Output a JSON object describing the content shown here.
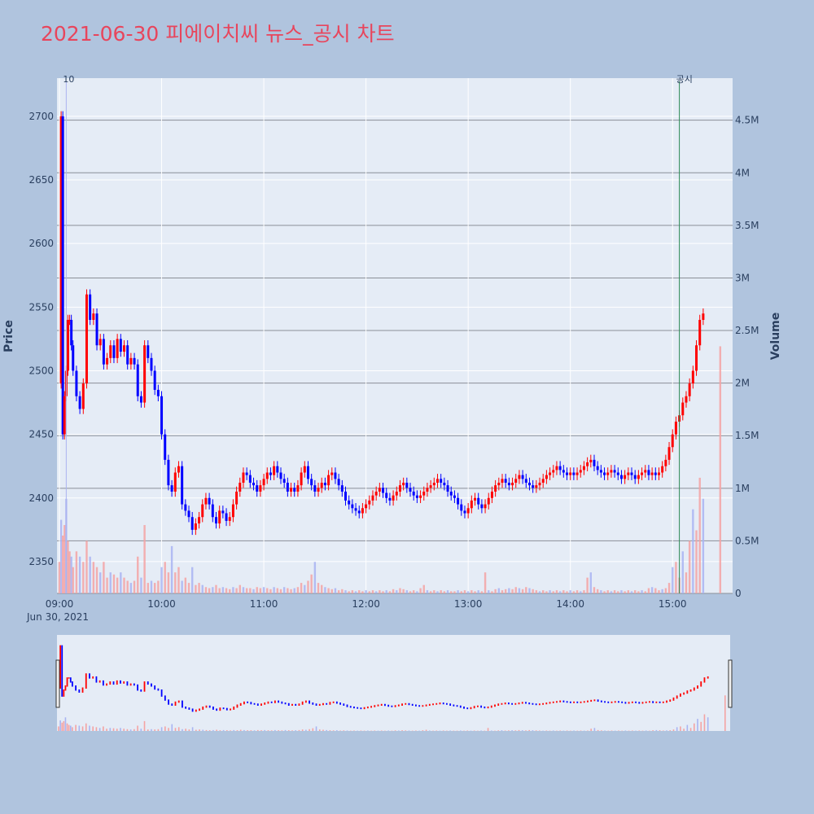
{
  "chart_data": {
    "type": "candlestick",
    "title": "2021-06-30 피에이치씨 뉴스_공시 차트",
    "ylabel_left": "Price",
    "ylabel_right": "Volume",
    "date_label": "Jun 30, 2021",
    "price_ylim": [
      2325,
      2730
    ],
    "price_ticks": [
      2350,
      2400,
      2450,
      2500,
      2550,
      2600,
      2650,
      2700
    ],
    "volume_ylim": [
      0,
      4.9
    ],
    "volume_unit": "M",
    "volume_ticks": [
      {
        "value": 0,
        "label": "0"
      },
      {
        "value": 0.5,
        "label": "0.5M"
      },
      {
        "value": 1,
        "label": "1M"
      },
      {
        "value": 1.5,
        "label": "1.5M"
      },
      {
        "value": 2,
        "label": "2M"
      },
      {
        "value": 2.5,
        "label": "2.5M"
      },
      {
        "value": 3,
        "label": "3M"
      },
      {
        "value": 3.5,
        "label": "3.5M"
      },
      {
        "value": 4,
        "label": "4M"
      },
      {
        "value": 4.5,
        "label": "4.5M"
      }
    ],
    "x_range": [
      "09:00",
      "15:30"
    ],
    "x_ticks": [
      "09:00",
      "10:00",
      "11:00",
      "12:00",
      "13:00",
      "14:00",
      "15:00"
    ],
    "annotations": [
      {
        "time": "09:04",
        "label": "10",
        "color": "#aab4f0"
      },
      {
        "time": "15:04",
        "label": "공시",
        "color": "#2e8b57"
      }
    ],
    "up_color": "#ff0000",
    "down_color": "#0000ff",
    "price_path": [
      [
        "09:00",
        2490
      ],
      [
        "09:01",
        2700
      ],
      [
        "09:02",
        2450
      ],
      [
        "09:03",
        2480
      ],
      [
        "09:04",
        2500
      ],
      [
        "09:05",
        2540
      ],
      [
        "09:06",
        2540
      ],
      [
        "09:07",
        2520
      ],
      [
        "09:08",
        2500
      ],
      [
        "09:10",
        2480
      ],
      [
        "09:12",
        2470
      ],
      [
        "09:14",
        2490
      ],
      [
        "09:16",
        2560
      ],
      [
        "09:18",
        2540
      ],
      [
        "09:20",
        2545
      ],
      [
        "09:22",
        2520
      ],
      [
        "09:24",
        2525
      ],
      [
        "09:26",
        2505
      ],
      [
        "09:28",
        2510
      ],
      [
        "09:30",
        2520
      ],
      [
        "09:32",
        2510
      ],
      [
        "09:34",
        2525
      ],
      [
        "09:36",
        2515
      ],
      [
        "09:38",
        2520
      ],
      [
        "09:40",
        2505
      ],
      [
        "09:42",
        2510
      ],
      [
        "09:44",
        2505
      ],
      [
        "09:46",
        2480
      ],
      [
        "09:48",
        2475
      ],
      [
        "09:50",
        2520
      ],
      [
        "09:52",
        2510
      ],
      [
        "09:54",
        2500
      ],
      [
        "09:56",
        2485
      ],
      [
        "09:58",
        2480
      ],
      [
        "10:00",
        2450
      ],
      [
        "10:02",
        2430
      ],
      [
        "10:04",
        2410
      ],
      [
        "10:06",
        2405
      ],
      [
        "10:08",
        2420
      ],
      [
        "10:10",
        2425
      ],
      [
        "10:12",
        2395
      ],
      [
        "10:14",
        2390
      ],
      [
        "10:16",
        2385
      ],
      [
        "10:18",
        2375
      ],
      [
        "10:20",
        2380
      ],
      [
        "10:22",
        2385
      ],
      [
        "10:24",
        2395
      ],
      [
        "10:26",
        2400
      ],
      [
        "10:28",
        2395
      ],
      [
        "10:30",
        2385
      ],
      [
        "10:32",
        2380
      ],
      [
        "10:34",
        2390
      ],
      [
        "10:36",
        2388
      ],
      [
        "10:38",
        2382
      ],
      [
        "10:40",
        2385
      ],
      [
        "10:42",
        2395
      ],
      [
        "10:44",
        2405
      ],
      [
        "10:46",
        2412
      ],
      [
        "10:48",
        2420
      ],
      [
        "10:50",
        2418
      ],
      [
        "10:52",
        2412
      ],
      [
        "10:54",
        2410
      ],
      [
        "10:56",
        2405
      ],
      [
        "10:58",
        2410
      ],
      [
        "11:00",
        2415
      ],
      [
        "11:02",
        2420
      ],
      [
        "11:04",
        2418
      ],
      [
        "11:06",
        2425
      ],
      [
        "11:08",
        2420
      ],
      [
        "11:10",
        2415
      ],
      [
        "11:12",
        2412
      ],
      [
        "11:14",
        2405
      ],
      [
        "11:16",
        2408
      ],
      [
        "11:18",
        2405
      ],
      [
        "11:20",
        2410
      ],
      [
        "11:22",
        2420
      ],
      [
        "11:24",
        2425
      ],
      [
        "11:26",
        2415
      ],
      [
        "11:28",
        2410
      ],
      [
        "11:30",
        2405
      ],
      [
        "11:32",
        2408
      ],
      [
        "11:34",
        2412
      ],
      [
        "11:36",
        2410
      ],
      [
        "11:38",
        2418
      ],
      [
        "11:40",
        2420
      ],
      [
        "11:42",
        2415
      ],
      [
        "11:44",
        2410
      ],
      [
        "11:46",
        2405
      ],
      [
        "11:48",
        2398
      ],
      [
        "11:50",
        2395
      ],
      [
        "11:52",
        2392
      ],
      [
        "11:54",
        2390
      ],
      [
        "11:56",
        2388
      ],
      [
        "11:58",
        2392
      ],
      [
        "12:00",
        2395
      ],
      [
        "12:02",
        2398
      ],
      [
        "12:04",
        2402
      ],
      [
        "12:06",
        2405
      ],
      [
        "12:08",
        2408
      ],
      [
        "12:10",
        2404
      ],
      [
        "12:12",
        2400
      ],
      [
        "12:14",
        2398
      ],
      [
        "12:16",
        2402
      ],
      [
        "12:18",
        2405
      ],
      [
        "12:20",
        2410
      ],
      [
        "12:22",
        2412
      ],
      [
        "12:24",
        2408
      ],
      [
        "12:26",
        2405
      ],
      [
        "12:28",
        2402
      ],
      [
        "12:30",
        2400
      ],
      [
        "12:32",
        2402
      ],
      [
        "12:34",
        2405
      ],
      [
        "12:36",
        2408
      ],
      [
        "12:38",
        2410
      ],
      [
        "12:40",
        2412
      ],
      [
        "12:42",
        2415
      ],
      [
        "12:44",
        2412
      ],
      [
        "12:46",
        2410
      ],
      [
        "12:48",
        2405
      ],
      [
        "12:50",
        2402
      ],
      [
        "12:52",
        2400
      ],
      [
        "12:54",
        2395
      ],
      [
        "12:56",
        2390
      ],
      [
        "12:58",
        2388
      ],
      [
        "13:00",
        2392
      ],
      [
        "13:02",
        2398
      ],
      [
        "13:04",
        2400
      ],
      [
        "13:06",
        2395
      ],
      [
        "13:08",
        2392
      ],
      [
        "13:10",
        2395
      ],
      [
        "13:12",
        2400
      ],
      [
        "13:14",
        2405
      ],
      [
        "13:16",
        2410
      ],
      [
        "13:18",
        2412
      ],
      [
        "13:20",
        2415
      ],
      [
        "13:22",
        2412
      ],
      [
        "13:24",
        2410
      ],
      [
        "13:26",
        2412
      ],
      [
        "13:28",
        2415
      ],
      [
        "13:30",
        2418
      ],
      [
        "13:32",
        2415
      ],
      [
        "13:34",
        2412
      ],
      [
        "13:36",
        2410
      ],
      [
        "13:38",
        2408
      ],
      [
        "13:40",
        2410
      ],
      [
        "13:42",
        2412
      ],
      [
        "13:44",
        2415
      ],
      [
        "13:46",
        2418
      ],
      [
        "13:48",
        2420
      ],
      [
        "13:50",
        2422
      ],
      [
        "13:52",
        2425
      ],
      [
        "13:54",
        2422
      ],
      [
        "13:56",
        2420
      ],
      [
        "13:58",
        2418
      ],
      [
        "14:00",
        2420
      ],
      [
        "14:02",
        2418
      ],
      [
        "14:04",
        2420
      ],
      [
        "14:06",
        2422
      ],
      [
        "14:08",
        2425
      ],
      [
        "14:10",
        2428
      ],
      [
        "14:12",
        2430
      ],
      [
        "14:14",
        2425
      ],
      [
        "14:16",
        2422
      ],
      [
        "14:18",
        2420
      ],
      [
        "14:20",
        2418
      ],
      [
        "14:22",
        2420
      ],
      [
        "14:24",
        2422
      ],
      [
        "14:26",
        2420
      ],
      [
        "14:28",
        2418
      ],
      [
        "14:30",
        2415
      ],
      [
        "14:32",
        2418
      ],
      [
        "14:34",
        2420
      ],
      [
        "14:36",
        2418
      ],
      [
        "14:38",
        2415
      ],
      [
        "14:40",
        2418
      ],
      [
        "14:42",
        2420
      ],
      [
        "14:44",
        2422
      ],
      [
        "14:46",
        2418
      ],
      [
        "14:48",
        2420
      ],
      [
        "14:50",
        2418
      ],
      [
        "14:52",
        2420
      ],
      [
        "14:54",
        2425
      ],
      [
        "14:56",
        2430
      ],
      [
        "14:58",
        2440
      ],
      [
        "15:00",
        2450
      ],
      [
        "15:02",
        2460
      ],
      [
        "15:04",
        2465
      ],
      [
        "15:06",
        2475
      ],
      [
        "15:08",
        2480
      ],
      [
        "15:10",
        2490
      ],
      [
        "15:12",
        2500
      ],
      [
        "15:14",
        2520
      ],
      [
        "15:16",
        2540
      ],
      [
        "15:18",
        2545
      ]
    ],
    "volume_bars": [
      [
        "09:00",
        0.3
      ],
      [
        "09:01",
        0.7
      ],
      [
        "09:02",
        0.55
      ],
      [
        "09:03",
        0.65
      ],
      [
        "09:04",
        0.9
      ],
      [
        "09:05",
        0.5
      ],
      [
        "09:06",
        0.4
      ],
      [
        "09:07",
        0.35
      ],
      [
        "09:08",
        0.25
      ],
      [
        "09:10",
        0.4
      ],
      [
        "09:12",
        0.35
      ],
      [
        "09:14",
        0.3
      ],
      [
        "09:16",
        0.5
      ],
      [
        "09:18",
        0.35
      ],
      [
        "09:20",
        0.3
      ],
      [
        "09:22",
        0.25
      ],
      [
        "09:24",
        0.2
      ],
      [
        "09:26",
        0.3
      ],
      [
        "09:28",
        0.15
      ],
      [
        "09:30",
        0.2
      ],
      [
        "09:32",
        0.18
      ],
      [
        "09:34",
        0.15
      ],
      [
        "09:36",
        0.2
      ],
      [
        "09:38",
        0.15
      ],
      [
        "09:40",
        0.12
      ],
      [
        "09:42",
        0.1
      ],
      [
        "09:44",
        0.12
      ],
      [
        "09:46",
        0.35
      ],
      [
        "09:48",
        0.15
      ],
      [
        "09:50",
        0.65
      ],
      [
        "09:52",
        0.1
      ],
      [
        "09:54",
        0.12
      ],
      [
        "09:56",
        0.1
      ],
      [
        "09:58",
        0.12
      ],
      [
        "10:00",
        0.25
      ],
      [
        "10:02",
        0.3
      ],
      [
        "10:04",
        0.2
      ],
      [
        "10:06",
        0.45
      ],
      [
        "10:08",
        0.2
      ],
      [
        "10:10",
        0.25
      ],
      [
        "10:12",
        0.12
      ],
      [
        "10:14",
        0.15
      ],
      [
        "10:16",
        0.1
      ],
      [
        "10:18",
        0.25
      ],
      [
        "10:20",
        0.08
      ],
      [
        "10:22",
        0.1
      ],
      [
        "10:24",
        0.08
      ],
      [
        "10:26",
        0.06
      ],
      [
        "10:28",
        0.05
      ],
      [
        "10:30",
        0.06
      ],
      [
        "10:32",
        0.08
      ],
      [
        "10:34",
        0.05
      ],
      [
        "10:36",
        0.06
      ],
      [
        "10:38",
        0.05
      ],
      [
        "10:40",
        0.04
      ],
      [
        "10:42",
        0.06
      ],
      [
        "10:44",
        0.05
      ],
      [
        "10:46",
        0.08
      ],
      [
        "10:48",
        0.06
      ],
      [
        "10:50",
        0.05
      ],
      [
        "10:52",
        0.05
      ],
      [
        "10:54",
        0.04
      ],
      [
        "10:56",
        0.06
      ],
      [
        "10:58",
        0.05
      ],
      [
        "11:00",
        0.06
      ],
      [
        "11:02",
        0.05
      ],
      [
        "11:04",
        0.04
      ],
      [
        "11:06",
        0.06
      ],
      [
        "11:08",
        0.05
      ],
      [
        "11:10",
        0.04
      ],
      [
        "11:12",
        0.06
      ],
      [
        "11:14",
        0.05
      ],
      [
        "11:16",
        0.04
      ],
      [
        "11:18",
        0.05
      ],
      [
        "11:20",
        0.06
      ],
      [
        "11:22",
        0.1
      ],
      [
        "11:24",
        0.08
      ],
      [
        "11:26",
        0.12
      ],
      [
        "11:28",
        0.18
      ],
      [
        "11:30",
        0.3
      ],
      [
        "11:32",
        0.1
      ],
      [
        "11:34",
        0.08
      ],
      [
        "11:36",
        0.06
      ],
      [
        "11:38",
        0.05
      ],
      [
        "11:40",
        0.04
      ],
      [
        "11:42",
        0.05
      ],
      [
        "11:44",
        0.03
      ],
      [
        "11:46",
        0.04
      ],
      [
        "11:48",
        0.03
      ],
      [
        "11:50",
        0.02
      ],
      [
        "11:52",
        0.03
      ],
      [
        "11:54",
        0.02
      ],
      [
        "11:56",
        0.03
      ],
      [
        "11:58",
        0.02
      ],
      [
        "12:00",
        0.03
      ],
      [
        "12:02",
        0.02
      ],
      [
        "12:04",
        0.03
      ],
      [
        "12:06",
        0.02
      ],
      [
        "12:08",
        0.03
      ],
      [
        "12:10",
        0.02
      ],
      [
        "12:12",
        0.03
      ],
      [
        "12:14",
        0.02
      ],
      [
        "12:16",
        0.04
      ],
      [
        "12:18",
        0.03
      ],
      [
        "12:20",
        0.05
      ],
      [
        "12:22",
        0.04
      ],
      [
        "12:24",
        0.03
      ],
      [
        "12:26",
        0.02
      ],
      [
        "12:28",
        0.03
      ],
      [
        "12:30",
        0.02
      ],
      [
        "12:32",
        0.05
      ],
      [
        "12:34",
        0.08
      ],
      [
        "12:36",
        0.03
      ],
      [
        "12:38",
        0.02
      ],
      [
        "12:40",
        0.03
      ],
      [
        "12:42",
        0.02
      ],
      [
        "12:44",
        0.03
      ],
      [
        "12:46",
        0.02
      ],
      [
        "12:48",
        0.03
      ],
      [
        "12:50",
        0.02
      ],
      [
        "12:52",
        0.02
      ],
      [
        "12:54",
        0.03
      ],
      [
        "12:56",
        0.02
      ],
      [
        "12:58",
        0.03
      ],
      [
        "13:00",
        0.02
      ],
      [
        "13:02",
        0.03
      ],
      [
        "13:04",
        0.02
      ],
      [
        "13:06",
        0.03
      ],
      [
        "13:08",
        0.02
      ],
      [
        "13:10",
        0.2
      ],
      [
        "13:12",
        0.03
      ],
      [
        "13:14",
        0.02
      ],
      [
        "13:16",
        0.04
      ],
      [
        "13:18",
        0.05
      ],
      [
        "13:20",
        0.03
      ],
      [
        "13:22",
        0.04
      ],
      [
        "13:24",
        0.05
      ],
      [
        "13:26",
        0.04
      ],
      [
        "13:28",
        0.06
      ],
      [
        "13:30",
        0.05
      ],
      [
        "13:32",
        0.04
      ],
      [
        "13:34",
        0.06
      ],
      [
        "13:36",
        0.05
      ],
      [
        "13:38",
        0.04
      ],
      [
        "13:40",
        0.03
      ],
      [
        "13:42",
        0.02
      ],
      [
        "13:44",
        0.03
      ],
      [
        "13:46",
        0.02
      ],
      [
        "13:48",
        0.03
      ],
      [
        "13:50",
        0.02
      ],
      [
        "13:52",
        0.03
      ],
      [
        "13:54",
        0.02
      ],
      [
        "13:56",
        0.03
      ],
      [
        "13:58",
        0.02
      ],
      [
        "14:00",
        0.03
      ],
      [
        "14:02",
        0.02
      ],
      [
        "14:04",
        0.03
      ],
      [
        "14:06",
        0.02
      ],
      [
        "14:08",
        0.03
      ],
      [
        "14:10",
        0.15
      ],
      [
        "14:12",
        0.2
      ],
      [
        "14:14",
        0.06
      ],
      [
        "14:16",
        0.04
      ],
      [
        "14:18",
        0.03
      ],
      [
        "14:20",
        0.02
      ],
      [
        "14:22",
        0.03
      ],
      [
        "14:24",
        0.02
      ],
      [
        "14:26",
        0.03
      ],
      [
        "14:28",
        0.02
      ],
      [
        "14:30",
        0.03
      ],
      [
        "14:32",
        0.02
      ],
      [
        "14:34",
        0.03
      ],
      [
        "14:36",
        0.02
      ],
      [
        "14:38",
        0.03
      ],
      [
        "14:40",
        0.02
      ],
      [
        "14:42",
        0.03
      ],
      [
        "14:44",
        0.02
      ],
      [
        "14:46",
        0.05
      ],
      [
        "14:48",
        0.06
      ],
      [
        "14:50",
        0.05
      ],
      [
        "14:52",
        0.03
      ],
      [
        "14:54",
        0.04
      ],
      [
        "14:56",
        0.05
      ],
      [
        "14:58",
        0.1
      ],
      [
        "15:00",
        0.25
      ],
      [
        "15:02",
        0.3
      ],
      [
        "15:04",
        0.15
      ],
      [
        "15:06",
        0.4
      ],
      [
        "15:08",
        0.2
      ],
      [
        "15:10",
        0.5
      ],
      [
        "15:12",
        0.8
      ],
      [
        "15:14",
        0.6
      ],
      [
        "15:16",
        1.1
      ],
      [
        "15:18",
        0.9
      ],
      [
        "15:28",
        2.35
      ]
    ]
  }
}
